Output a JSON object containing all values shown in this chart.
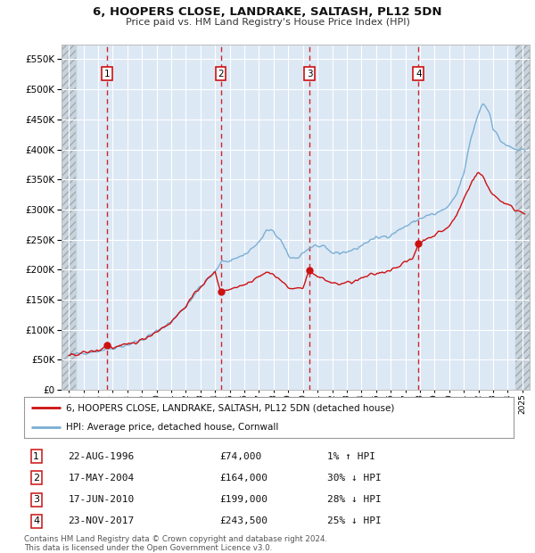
{
  "title1": "6, HOOPERS CLOSE, LANDRAKE, SALTASH, PL12 5DN",
  "title2": "Price paid vs. HM Land Registry's House Price Index (HPI)",
  "ylim": [
    0,
    575000
  ],
  "yticks": [
    0,
    50000,
    100000,
    150000,
    200000,
    250000,
    300000,
    350000,
    400000,
    450000,
    500000,
    550000
  ],
  "xlim_start": 1993.5,
  "xlim_end": 2025.5,
  "bg_color": "#dde8f5",
  "hatch_color": "#c8d3dc",
  "grid_color": "#ffffff",
  "sale_dates": [
    1996.63,
    2004.38,
    2010.46,
    2017.9
  ],
  "sale_prices": [
    74000,
    164000,
    199000,
    243500
  ],
  "sale_labels": [
    "1",
    "2",
    "3",
    "4"
  ],
  "legend_label_red": "6, HOOPERS CLOSE, LANDRAKE, SALTASH, PL12 5DN (detached house)",
  "legend_label_blue": "HPI: Average price, detached house, Cornwall",
  "table_data": [
    [
      "1",
      "22-AUG-1996",
      "£74,000",
      "1% ↑ HPI"
    ],
    [
      "2",
      "17-MAY-2004",
      "£164,000",
      "30% ↓ HPI"
    ],
    [
      "3",
      "17-JUN-2010",
      "£199,000",
      "28% ↓ HPI"
    ],
    [
      "4",
      "23-NOV-2017",
      "£243,500",
      "25% ↓ HPI"
    ]
  ],
  "footnote": "Contains HM Land Registry data © Crown copyright and database right 2024.\nThis data is licensed under the Open Government Licence v3.0."
}
